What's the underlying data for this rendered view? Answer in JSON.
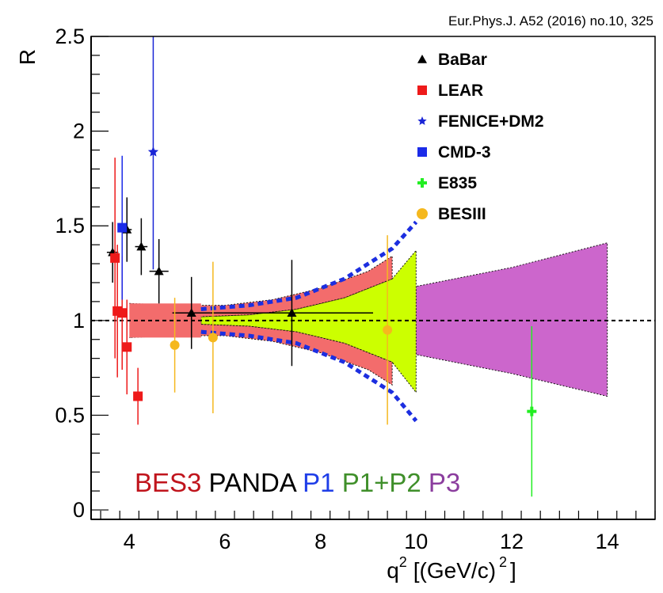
{
  "reference": "Eur.Phys.J. A52 (2016) no.10, 325",
  "facility_labels": [
    {
      "text": "BES3",
      "color": "#c0141c"
    },
    {
      "text": "PANDA",
      "color": "#000000"
    },
    {
      "text": "P1",
      "color": "#1f3ee8"
    },
    {
      "text": "P1+P2",
      "color": "#3f8f2a"
    },
    {
      "text": "P3",
      "color": "#8b3d9e"
    }
  ],
  "chart_data": {
    "type": "scatter",
    "xlabel": "q",
    "xlabel_sup": "2",
    "xlabel_units": "[(GeV/c)",
    "xlabel_units_sup": "2",
    "xlabel_close": "]",
    "ylabel": "R",
    "xlim": [
      3.2,
      15.0
    ],
    "ylim": [
      -0.05,
      2.5
    ],
    "xticks": [
      4,
      6,
      8,
      10,
      12,
      14
    ],
    "yticks": [
      0,
      0.5,
      1,
      1.5,
      2,
      2.5
    ],
    "xtick_labels": [
      "4",
      "6",
      "8",
      "10",
      "12",
      "14"
    ],
    "ytick_labels": [
      "0",
      "0.5",
      "1",
      "1.5",
      "2",
      "2.5"
    ],
    "reference_line": 1.0,
    "legend_position": "top-right",
    "series": [
      {
        "name": "BaBar",
        "marker": "triangle",
        "color": "#000000",
        "points": [
          {
            "x": 3.65,
            "y": 1.36,
            "yerr": 0.16,
            "xerr": 0.12
          },
          {
            "x": 3.95,
            "y": 1.48,
            "yerr": 0.17,
            "xerr": 0.1
          },
          {
            "x": 4.25,
            "y": 1.39,
            "yerr": 0.15,
            "xerr": 0.13
          },
          {
            "x": 4.62,
            "y": 1.26,
            "yerr": 0.17,
            "xerr": 0.2
          },
          {
            "x": 5.3,
            "y": 1.04,
            "yerr": 0.19,
            "xerr": 0.4
          },
          {
            "x": 7.4,
            "y": 1.04,
            "yerr": 0.28,
            "xerr": 1.7
          }
        ]
      },
      {
        "name": "LEAR",
        "marker": "square",
        "color": "#ee1a1a",
        "points": [
          {
            "x": 3.7,
            "y": 1.33,
            "yerr": 0.53
          },
          {
            "x": 3.75,
            "y": 1.05,
            "yerr": 0.35
          },
          {
            "x": 3.85,
            "y": 1.04,
            "yerr": 0.3
          },
          {
            "x": 3.95,
            "y": 0.86,
            "yerr": 0.25
          },
          {
            "x": 4.18,
            "y": 0.6,
            "yerr": 0.15
          }
        ]
      },
      {
        "name": "FENICE+DM2",
        "marker": "star",
        "color": "#1a25d6",
        "points": [
          {
            "x": 4.5,
            "y": 1.89,
            "yerr": 0.62
          }
        ]
      },
      {
        "name": "CMD-3",
        "marker": "square",
        "color": "#1b2be8",
        "points": [
          {
            "x": 3.85,
            "y": 1.49,
            "yerr": 0.38
          }
        ]
      },
      {
        "name": "E835",
        "marker": "cross",
        "color": "#22ee22",
        "points": [
          {
            "x": 12.42,
            "y": 0.52,
            "yerr": 0.45
          }
        ]
      },
      {
        "name": "BESIII",
        "marker": "circle",
        "color": "#f5b81e",
        "points": [
          {
            "x": 4.95,
            "y": 0.87,
            "yerr": 0.25
          },
          {
            "x": 5.75,
            "y": 0.91,
            "yerr": 0.4
          },
          {
            "x": 9.4,
            "y": 0.95,
            "yerr": 0.5
          }
        ]
      }
    ],
    "bands": [
      {
        "name": "P3",
        "color": "#cc66cc",
        "upper": [
          [
            5.5,
            1.02
          ],
          [
            7.0,
            1.04
          ],
          [
            9.0,
            1.12
          ],
          [
            10.0,
            1.18
          ],
          [
            12.0,
            1.28
          ],
          [
            14.0,
            1.41
          ]
        ],
        "lower": [
          [
            5.5,
            0.98
          ],
          [
            7.0,
            0.96
          ],
          [
            9.0,
            0.88
          ],
          [
            10.0,
            0.82
          ],
          [
            12.0,
            0.72
          ],
          [
            14.0,
            0.6
          ]
        ]
      },
      {
        "name": "P1+P2",
        "color": "#ccff00",
        "upper": [
          [
            5.5,
            1.02
          ],
          [
            6.5,
            1.03
          ],
          [
            7.5,
            1.06
          ],
          [
            8.5,
            1.12
          ],
          [
            9.5,
            1.22
          ],
          [
            10.0,
            1.37
          ]
        ],
        "lower": [
          [
            5.5,
            0.98
          ],
          [
            6.5,
            0.97
          ],
          [
            7.5,
            0.94
          ],
          [
            8.5,
            0.88
          ],
          [
            9.5,
            0.78
          ],
          [
            10.0,
            0.62
          ]
        ]
      },
      {
        "name": "BES3",
        "color": "#f36c6c",
        "upper": [
          [
            4.0,
            1.09
          ],
          [
            5.0,
            1.08
          ],
          [
            6.0,
            1.08
          ],
          [
            7.0,
            1.11
          ],
          [
            8.0,
            1.17
          ],
          [
            9.0,
            1.26
          ],
          [
            9.5,
            1.34
          ]
        ],
        "lower": [
          [
            4.0,
            0.91
          ],
          [
            5.0,
            0.92
          ],
          [
            6.0,
            0.92
          ],
          [
            7.0,
            0.89
          ],
          [
            8.0,
            0.83
          ],
          [
            9.0,
            0.74
          ],
          [
            9.5,
            0.66
          ]
        ],
        "inner_upper": [
          [
            5.5,
            1.02
          ],
          [
            6.5,
            1.03
          ],
          [
            7.5,
            1.06
          ],
          [
            8.5,
            1.12
          ],
          [
            9.5,
            1.22
          ]
        ],
        "inner_lower": [
          [
            5.5,
            0.98
          ],
          [
            6.5,
            0.97
          ],
          [
            7.5,
            0.94
          ],
          [
            8.5,
            0.88
          ],
          [
            9.5,
            0.78
          ]
        ]
      }
    ],
    "dashed_curves": {
      "color": "#1c2ee0",
      "upper": [
        [
          5.5,
          1.06
        ],
        [
          6.5,
          1.08
        ],
        [
          7.5,
          1.12
        ],
        [
          8.5,
          1.22
        ],
        [
          9.5,
          1.38
        ],
        [
          10.0,
          1.52
        ]
      ],
      "lower": [
        [
          5.5,
          0.94
        ],
        [
          6.5,
          0.92
        ],
        [
          7.5,
          0.88
        ],
        [
          8.5,
          0.78
        ],
        [
          9.5,
          0.62
        ],
        [
          10.0,
          0.47
        ]
      ]
    }
  }
}
